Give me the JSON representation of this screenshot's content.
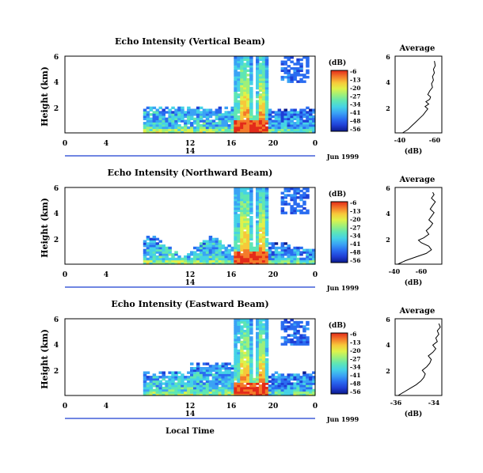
{
  "colors": {
    "colormap": [
      "#0b1a8c",
      "#1f3fd6",
      "#2a6cf0",
      "#3aa2f5",
      "#45d2e6",
      "#5fe6b4",
      "#9ef07a",
      "#dff24a",
      "#f7c83a",
      "#f47a2a",
      "#e32b1a"
    ],
    "outline": "#000000",
    "bg": "#ffffff"
  },
  "chart_data": [
    {
      "type": "heatmap",
      "title": "Echo Intensity (Vertical Beam)",
      "ylabel": "Height (km)",
      "yticks": [
        "6",
        "4",
        "2"
      ],
      "xticks": [
        "0",
        "4",
        "12",
        "16",
        "20",
        "0"
      ],
      "date_label": "14",
      "date_suffix": "Jun 1999",
      "colorbar_unit": "(dB)",
      "colorbar_ticks": [
        "-6",
        "-13",
        "-20",
        "-27",
        "-34",
        "-41",
        "-48",
        "-56"
      ],
      "avg": {
        "title": "Average",
        "xlabel": "(dB)",
        "xticks": [
          "-40",
          "-60"
        ],
        "yticks": [
          "6",
          "4",
          "2"
        ],
        "profile": [
          [
            0,
            -28
          ],
          [
            0.3,
            -34
          ],
          [
            0.6,
            -38
          ],
          [
            0.9,
            -42
          ],
          [
            1.2,
            -46
          ],
          [
            1.5,
            -50
          ],
          [
            1.8,
            -53
          ],
          [
            2.0,
            -55
          ],
          [
            2.2,
            -52
          ],
          [
            2.4,
            -56
          ],
          [
            2.6,
            -53
          ],
          [
            2.8,
            -57
          ],
          [
            3.0,
            -58
          ],
          [
            3.2,
            -55
          ],
          [
            3.5,
            -57
          ],
          [
            3.8,
            -60
          ],
          [
            4.1,
            -59
          ],
          [
            4.4,
            -61
          ],
          [
            4.7,
            -60
          ],
          [
            5.0,
            -62
          ],
          [
            5.3,
            -61
          ],
          [
            5.6,
            -63
          ],
          [
            6.0,
            -62
          ]
        ]
      }
    },
    {
      "type": "heatmap",
      "title": "Echo Intensity (Northward Beam)",
      "ylabel": "Height (km)",
      "yticks": [
        "6",
        "4",
        "2"
      ],
      "xticks": [
        "0",
        "4",
        "12",
        "16",
        "20",
        "0"
      ],
      "date_label": "14",
      "date_suffix": "Jun 1999",
      "colorbar_unit": "(dB)",
      "colorbar_ticks": [
        "-6",
        "-13",
        "-20",
        "-27",
        "-34",
        "-41",
        "-48",
        "-56"
      ],
      "avg": {
        "title": "Average",
        "xlabel": "(dB)",
        "xticks": [
          "-40",
          "-60"
        ],
        "yticks": [
          "6",
          "4",
          "2"
        ],
        "profile": [
          [
            0,
            -30
          ],
          [
            0.3,
            -36
          ],
          [
            0.6,
            -44
          ],
          [
            0.9,
            -52
          ],
          [
            1.2,
            -56
          ],
          [
            1.5,
            -54
          ],
          [
            1.8,
            -48
          ],
          [
            2.0,
            -46
          ],
          [
            2.2,
            -50
          ],
          [
            2.5,
            -54
          ],
          [
            2.8,
            -52
          ],
          [
            3.1,
            -55
          ],
          [
            3.4,
            -57
          ],
          [
            3.7,
            -54
          ],
          [
            4.0,
            -56
          ],
          [
            4.3,
            -58
          ],
          [
            4.6,
            -55
          ],
          [
            4.9,
            -57
          ],
          [
            5.2,
            -59
          ],
          [
            5.5,
            -56
          ],
          [
            5.8,
            -58
          ],
          [
            6.0,
            -57
          ]
        ]
      }
    },
    {
      "type": "heatmap",
      "title": "Echo Intensity (Eastward Beam)",
      "ylabel": "Height (km)",
      "yticks": [
        "6",
        "4",
        "2"
      ],
      "xticks": [
        "0",
        "4",
        "12",
        "16",
        "20",
        "0"
      ],
      "date_label": "14",
      "date_suffix": "Jun 1999",
      "colorbar_unit": "(dB)",
      "colorbar_ticks": [
        "-6",
        "-13",
        "-20",
        "-27",
        "-34",
        "-41",
        "-48",
        "-56"
      ],
      "xaxis_label": "Local Time",
      "avg": {
        "title": "Average",
        "xlabel": "(dB)",
        "xticks": [
          "-36",
          "-34"
        ],
        "yticks": [
          "6",
          "4",
          "2"
        ],
        "profile": [
          [
            0,
            -33.8
          ],
          [
            0.3,
            -34.2
          ],
          [
            0.6,
            -34.6
          ],
          [
            0.9,
            -35.0
          ],
          [
            1.2,
            -35.3
          ],
          [
            1.5,
            -35.5
          ],
          [
            1.8,
            -35.6
          ],
          [
            2.1,
            -35.4
          ],
          [
            2.4,
            -35.7
          ],
          [
            2.7,
            -35.9
          ],
          [
            3.0,
            -36.0
          ],
          [
            3.3,
            -35.8
          ],
          [
            3.6,
            -36.1
          ],
          [
            3.9,
            -36.3
          ],
          [
            4.2,
            -36.1
          ],
          [
            4.5,
            -36.4
          ],
          [
            4.8,
            -36.3
          ],
          [
            5.1,
            -36.5
          ],
          [
            5.4,
            -36.4
          ],
          [
            5.7,
            -36.6
          ],
          [
            6.0,
            -36.5
          ]
        ]
      }
    }
  ]
}
